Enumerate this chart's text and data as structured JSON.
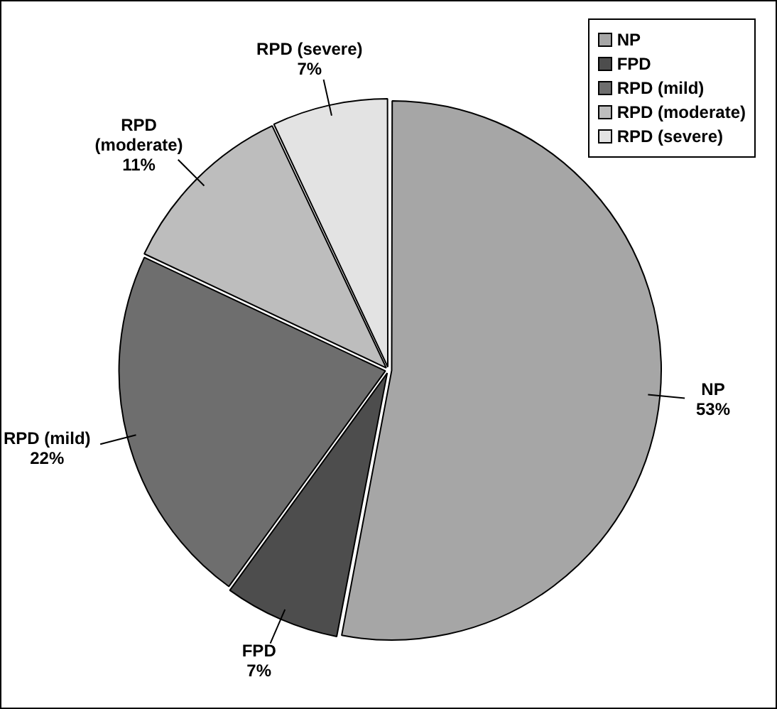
{
  "chart_data": {
    "type": "pie",
    "categories": [
      "NP",
      "FPD",
      "RPD (mild)",
      "RPD (moderate)",
      "RPD (severe)"
    ],
    "values": [
      53,
      7,
      22,
      11,
      7
    ],
    "colors": [
      "#a6a6a6",
      "#4d4d4d",
      "#6e6e6e",
      "#bdbdbd",
      "#e3e3e3"
    ],
    "value_labels": [
      "53%",
      "7%",
      "22%",
      "11%",
      "7%"
    ],
    "legend": "top right"
  }
}
